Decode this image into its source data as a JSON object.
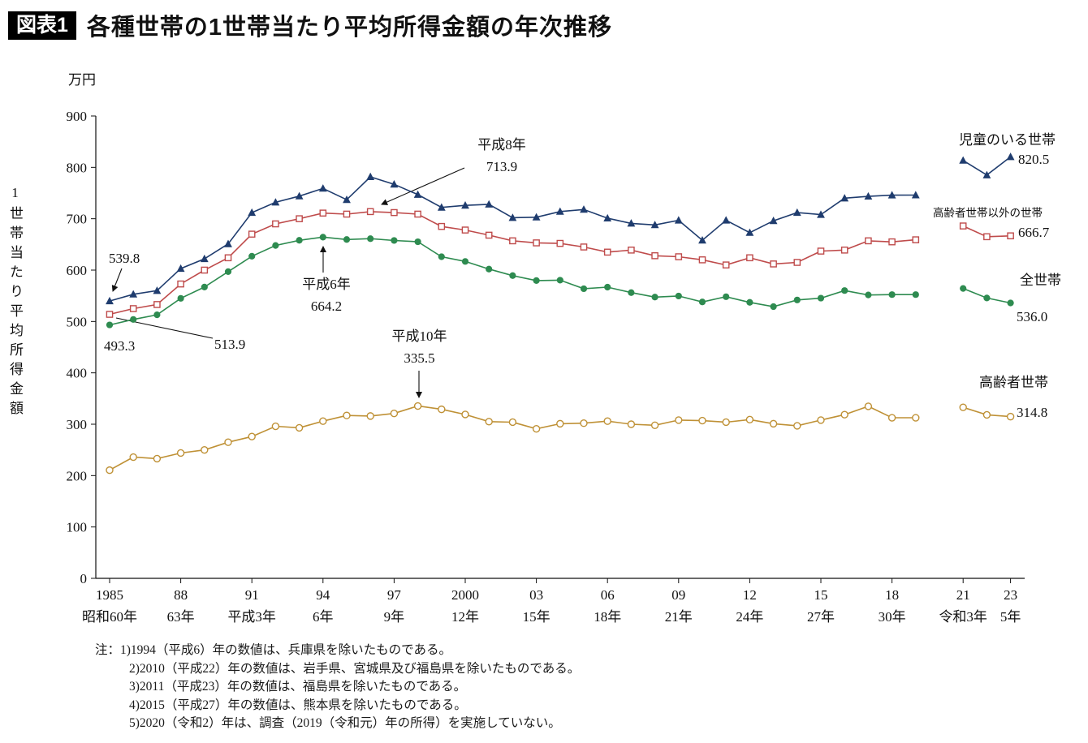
{
  "header": {
    "badge": "図表1",
    "title": "各種世帯の1世帯当たり平均所得金額の年次推移"
  },
  "axes": {
    "unit": "万円",
    "y_title": "1世帯当たり平均所得金額",
    "y_ticks": [
      0,
      100,
      200,
      300,
      400,
      500,
      600,
      700,
      800,
      900
    ],
    "x_ticks": [
      {
        "year": 1985,
        "label": "1985",
        "era": "昭和60年"
      },
      {
        "year": 1988,
        "label": "88",
        "era": "63年"
      },
      {
        "year": 1991,
        "label": "91",
        "era": "平成3年"
      },
      {
        "year": 1994,
        "label": "94",
        "era": "6年"
      },
      {
        "year": 1997,
        "label": "97",
        "era": "9年"
      },
      {
        "year": 2000,
        "label": "2000",
        "era": "12年"
      },
      {
        "year": 2003,
        "label": "03",
        "era": "15年"
      },
      {
        "year": 2006,
        "label": "06",
        "era": "18年"
      },
      {
        "year": 2009,
        "label": "09",
        "era": "21年"
      },
      {
        "year": 2012,
        "label": "12",
        "era": "24年"
      },
      {
        "year": 2015,
        "label": "15",
        "era": "27年"
      },
      {
        "year": 2018,
        "label": "18",
        "era": "30年"
      },
      {
        "year": 2021,
        "label": "21",
        "era": "令和3年"
      },
      {
        "year": 2023,
        "label": "23",
        "era": "5年"
      }
    ]
  },
  "legend": [
    {
      "label": "児童のいる世帯",
      "value": "820.5"
    },
    {
      "label": "高齢者世帯以外の世帯",
      "value": "666.7"
    },
    {
      "label": "全世帯",
      "value": "536.0"
    },
    {
      "label": "高齢者世帯",
      "value": "314.8"
    }
  ],
  "annotations": [
    {
      "id": "children-1985",
      "lines": [
        "539.8"
      ]
    },
    {
      "id": "all-1985",
      "lines": [
        "493.3"
      ]
    },
    {
      "id": "non-elderly-1985",
      "lines": [
        "513.9"
      ]
    },
    {
      "id": "non-elderly-peak",
      "lines": [
        "平成8年",
        "713.9"
      ]
    },
    {
      "id": "all-peak",
      "lines": [
        "平成6年",
        "664.2"
      ]
    },
    {
      "id": "elderly-peak",
      "lines": [
        "平成10年",
        "335.5"
      ]
    }
  ],
  "notes": {
    "prefix": "注：",
    "items": [
      "1)1994（平成6）年の数値は、兵庫県を除いたものである。",
      "2)2010（平成22）年の数値は、岩手県、宮城県及び福島県を除いたものである。",
      "3)2011（平成23）年の数値は、福島県を除いたものである。",
      "4)2015（平成27）年の数値は、熊本県を除いたものである。",
      "5)2020（令和2）年は、調査（2019（令和元）年の所得）を実施していない。"
    ]
  },
  "chart_data": {
    "type": "line",
    "title": "各種世帯の1世帯当たり平均所得金額の年次推移",
    "ylabel": "1世帯当たり平均所得金額（万円）",
    "ylim": [
      0,
      900
    ],
    "y_tick_step": 100,
    "grid": false,
    "legend_position": "right",
    "missing_years": [
      2020
    ],
    "x": [
      1985,
      1986,
      1987,
      1988,
      1989,
      1990,
      1991,
      1992,
      1993,
      1994,
      1995,
      1996,
      1997,
      1998,
      1999,
      2000,
      2001,
      2002,
      2003,
      2004,
      2005,
      2006,
      2007,
      2008,
      2009,
      2010,
      2011,
      2012,
      2013,
      2014,
      2015,
      2016,
      2017,
      2018,
      2019,
      2021,
      2022,
      2023
    ],
    "series": [
      {
        "key": "children",
        "name": "児童のいる世帯",
        "color": "#1f3c6e",
        "marker": "triangle-filled",
        "values": [
          539.8,
          553,
          560,
          603,
          622,
          651,
          712,
          732,
          744,
          759,
          737,
          781.6,
          767,
          747,
          722,
          726,
          728,
          702,
          703,
          714,
          718,
          701,
          691,
          688,
          697,
          658.1,
          697,
          673,
          696,
          712,
          708,
          740,
          743.6,
          745.9,
          746,
          813.5,
          785.0,
          820.5
        ]
      },
      {
        "key": "non-elderly",
        "name": "高齢者世帯以外の世帯",
        "color": "#bf4b4b",
        "marker": "square-open",
        "values": [
          513.9,
          525,
          533,
          573,
          600,
          624,
          670,
          690,
          700,
          711,
          709,
          713.9,
          712,
          709,
          685,
          678,
          668,
          657,
          653,
          652,
          645,
          635,
          639,
          628,
          626,
          620,
          610,
          624,
          612,
          615,
          637,
          639,
          657,
          655,
          659,
          685.9,
          665.0,
          666.7
        ]
      },
      {
        "key": "all",
        "name": "全世帯",
        "color": "#2e8b50",
        "marker": "circle-filled",
        "values": [
          493.3,
          504,
          513,
          545,
          567,
          597,
          627,
          648,
          658,
          664.2,
          659.6,
          661.2,
          657.7,
          655.2,
          626,
          616.9,
          602,
          589.3,
          579.7,
          580.4,
          563.8,
          566.8,
          556.2,
          547.5,
          549.6,
          538,
          548.2,
          537.2,
          528.9,
          541.9,
          545.4,
          560.2,
          551.6,
          552.3,
          552.3,
          564.3,
          545.7,
          536.0
        ]
      },
      {
        "key": "elderly",
        "name": "高齢者世帯",
        "color": "#bf9136",
        "marker": "circle-open",
        "values": [
          210.6,
          236,
          233,
          244,
          250,
          265,
          276,
          296,
          293,
          306,
          317,
          316,
          321,
          335.5,
          329,
          319,
          305,
          304,
          291,
          301,
          302,
          306,
          300,
          298,
          308,
          307,
          304,
          309,
          301,
          297,
          308,
          318.6,
          334.9,
          312.6,
          312.6,
          332.9,
          318.3,
          314.8
        ]
      }
    ]
  }
}
